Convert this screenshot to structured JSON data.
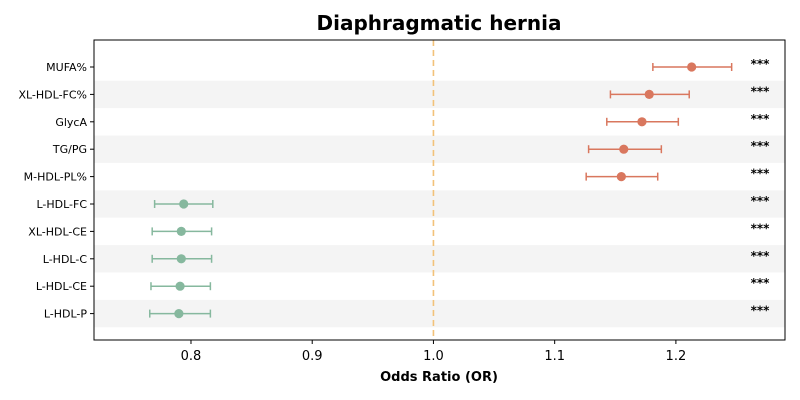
{
  "chart_data": {
    "type": "forest",
    "title": "Diaphragmatic hernia",
    "xlabel": "Odds Ratio (OR)",
    "ylabel": "",
    "xlim": [
      0.72,
      1.29
    ],
    "xticks": [
      0.8,
      0.9,
      1.0,
      1.1,
      1.2
    ],
    "xtick_labels": [
      "0.8",
      "0.9",
      "1.0",
      "1.1",
      "1.2"
    ],
    "reference_line": 1.0,
    "grid": false,
    "colors": {
      "positive": "#d9775e",
      "negative": "#86b89e",
      "reference": "#f2c27a",
      "stripe": "#f4f4f4"
    },
    "rows": [
      {
        "label": "MUFA%",
        "or": 1.213,
        "lower": 1.181,
        "upper": 1.246,
        "significance": "***"
      },
      {
        "label": "XL-HDL-FC%",
        "or": 1.178,
        "lower": 1.146,
        "upper": 1.211,
        "significance": "***"
      },
      {
        "label": "GlycA",
        "or": 1.172,
        "lower": 1.143,
        "upper": 1.202,
        "significance": "***"
      },
      {
        "label": "TG/PG",
        "or": 1.157,
        "lower": 1.128,
        "upper": 1.188,
        "significance": "***"
      },
      {
        "label": "M-HDL-PL%",
        "or": 1.155,
        "lower": 1.126,
        "upper": 1.185,
        "significance": "***"
      },
      {
        "label": "L-HDL-FC",
        "or": 0.794,
        "lower": 0.77,
        "upper": 0.818,
        "significance": "***"
      },
      {
        "label": "XL-HDL-CE",
        "or": 0.792,
        "lower": 0.768,
        "upper": 0.817,
        "significance": "***"
      },
      {
        "label": "L-HDL-C",
        "or": 0.792,
        "lower": 0.768,
        "upper": 0.817,
        "significance": "***"
      },
      {
        "label": "L-HDL-CE",
        "or": 0.791,
        "lower": 0.767,
        "upper": 0.816,
        "significance": "***"
      },
      {
        "label": "L-HDL-P",
        "or": 0.79,
        "lower": 0.766,
        "upper": 0.816,
        "significance": "***"
      }
    ]
  }
}
